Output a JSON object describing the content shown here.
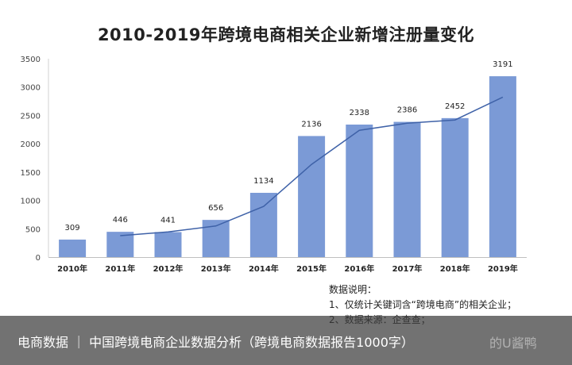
{
  "chart_data": {
    "type": "bar",
    "title": "2010-2019年跨境电商相关企业新增注册量变化",
    "xlabel": "",
    "ylabel": "",
    "categories": [
      "2010年",
      "2011年",
      "2012年",
      "2013年",
      "2014年",
      "2015年",
      "2016年",
      "2017年",
      "2018年",
      "2019年"
    ],
    "values": [
      309,
      446,
      441,
      656,
      1134,
      2136,
      2338,
      2386,
      2452,
      3191
    ],
    "data_labels": [
      "309",
      "446",
      "441",
      "656",
      "1134",
      "2136",
      "2338",
      "2386",
      "2452",
      "3191"
    ],
    "trendline": {
      "type": "moving-average",
      "x": [
        "2011年",
        "2012年",
        "2013年",
        "2014年",
        "2015年",
        "2016年",
        "2017年",
        "2018年",
        "2019年"
      ],
      "values": [
        378,
        444,
        549,
        895,
        1635,
        2237,
        2362,
        2419,
        2822
      ]
    },
    "ylim": [
      0,
      3500
    ],
    "yticks": [
      "0",
      "500",
      "1000",
      "1500",
      "2000",
      "2500",
      "3000",
      "3500"
    ],
    "grid": false,
    "legend": "none",
    "bar_color": "#7b9ad6",
    "line_color": "#3f62a8"
  },
  "notes": {
    "heading": "数据说明：",
    "items": [
      "1、仅统计关键词含“跨境电商”的相关企业；",
      "2、数据来源：企查查；"
    ]
  },
  "caption": {
    "text": "电商数据 ｜ 中国跨境电商企业数据分析（跨境电商数据报告1000字）",
    "watermark": "的U酱鸭"
  }
}
